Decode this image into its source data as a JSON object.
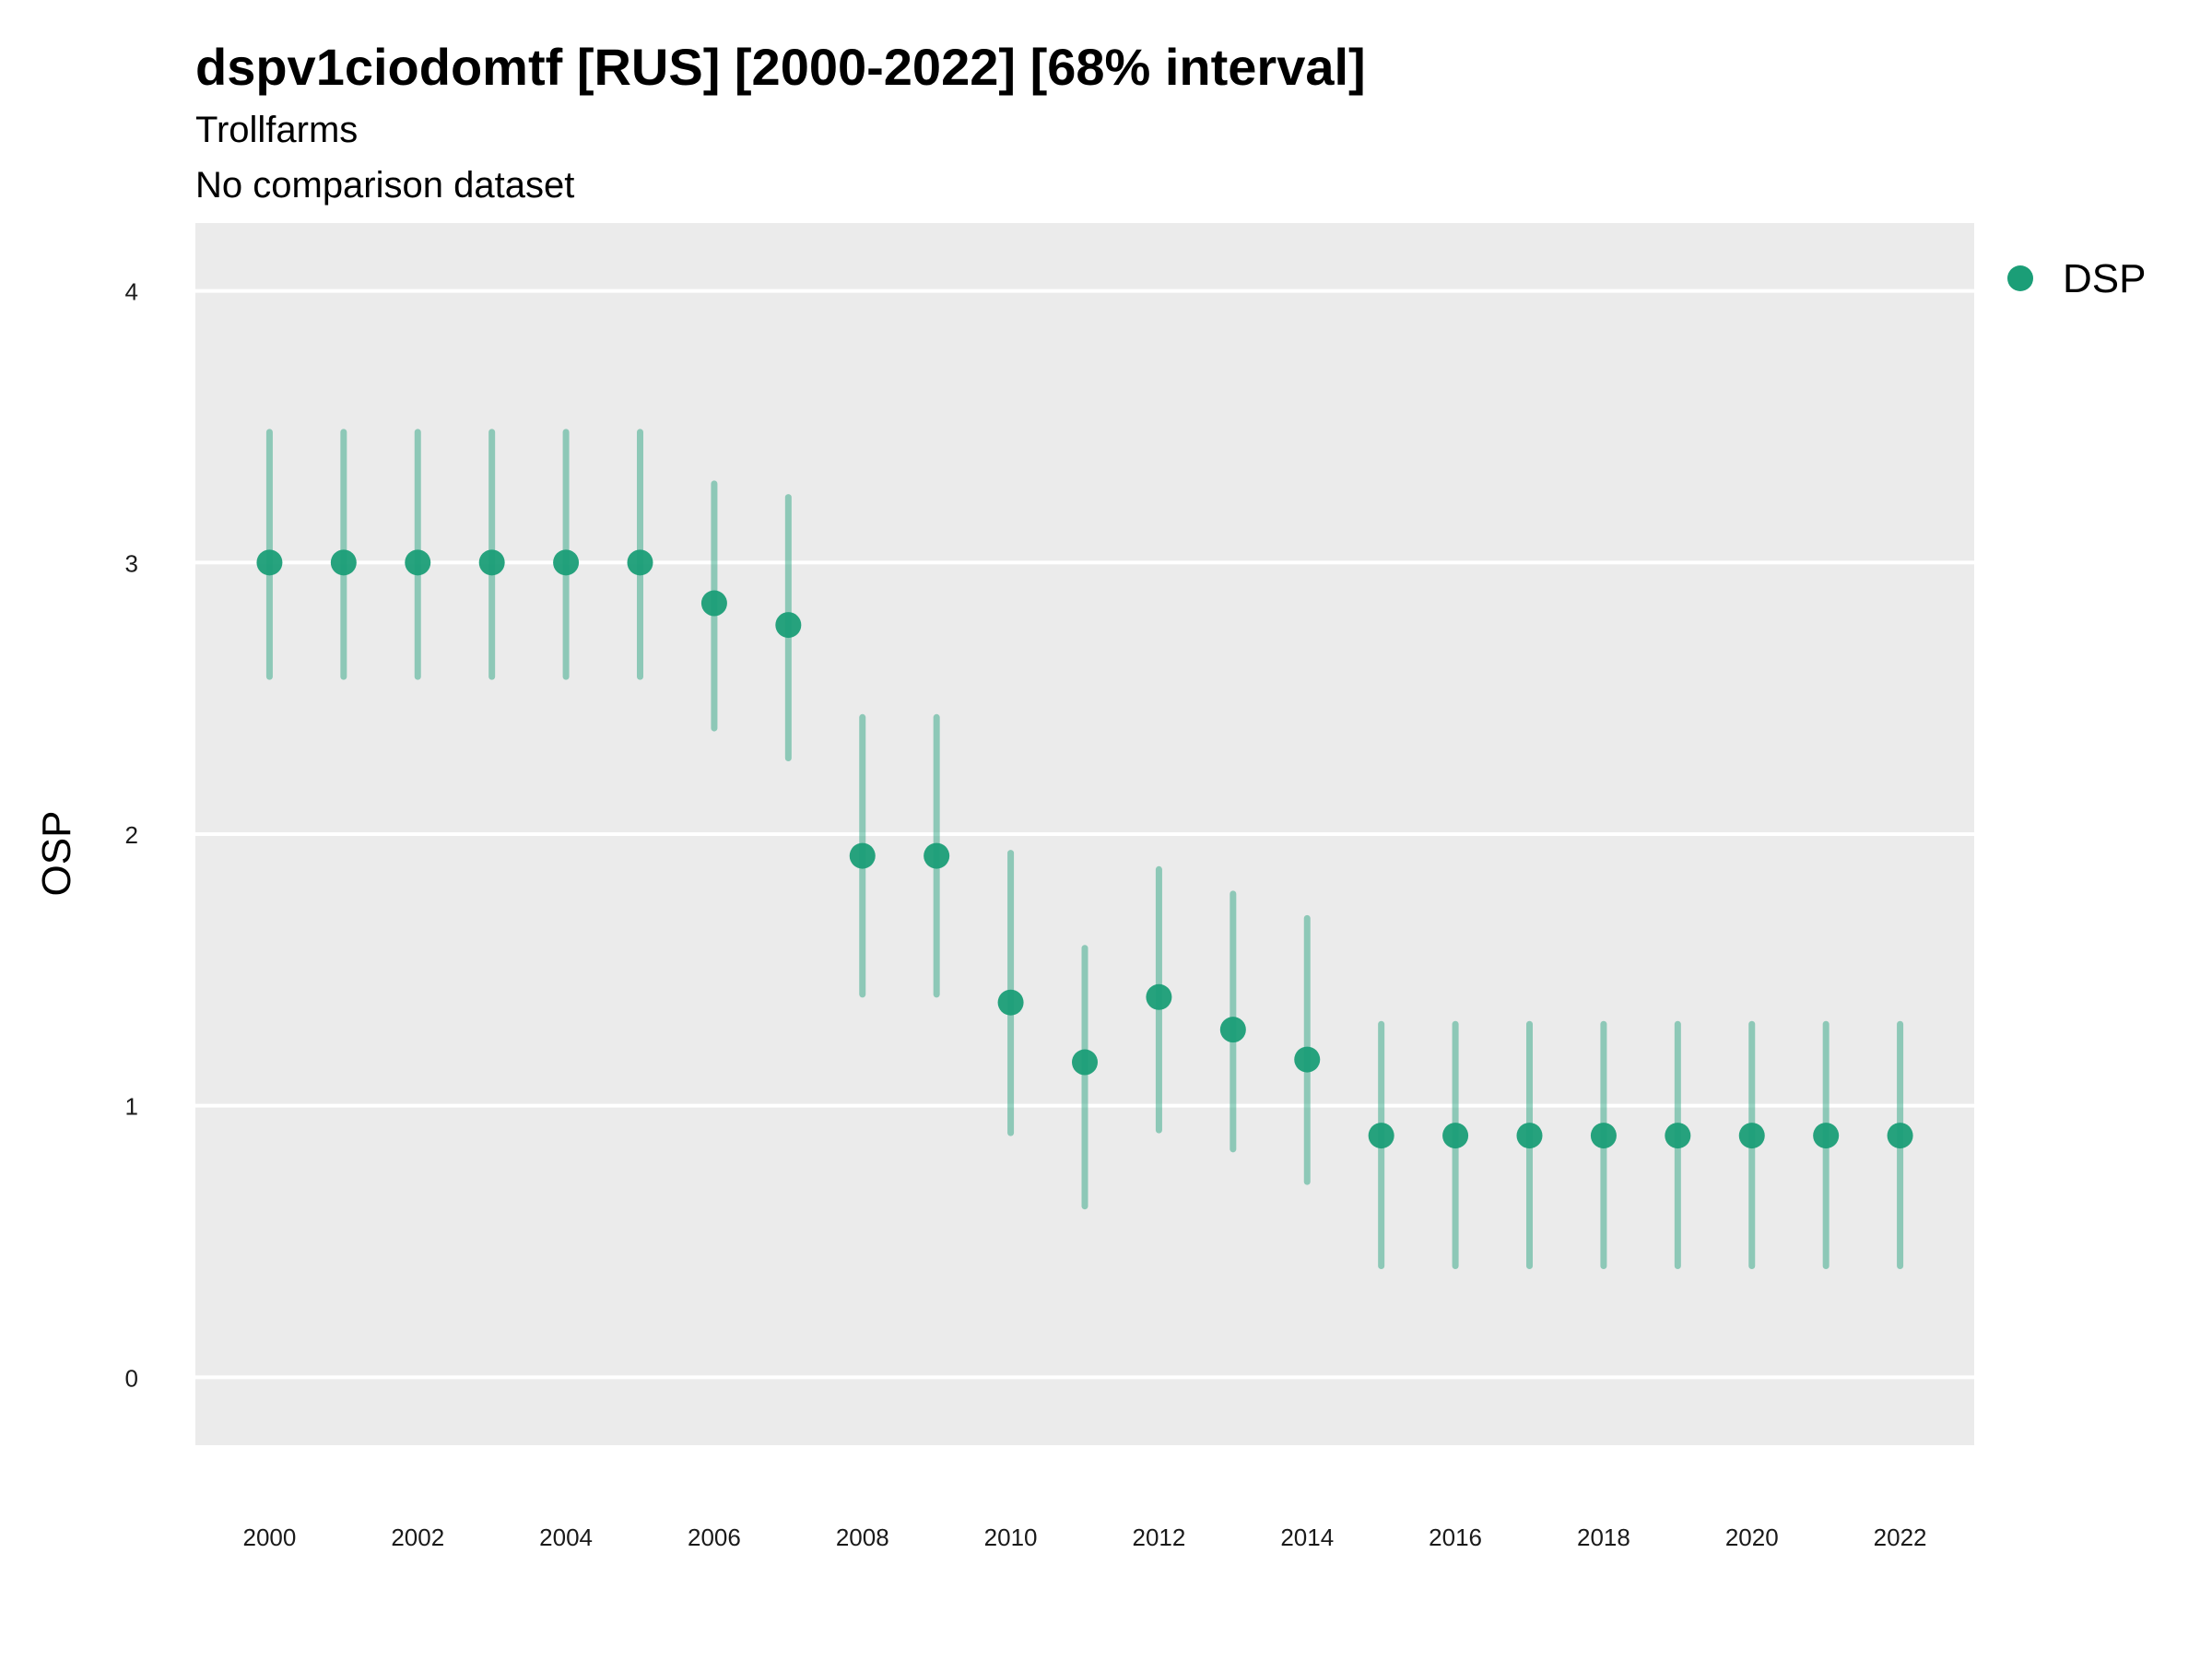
{
  "chart_data": {
    "type": "scatter",
    "title": "dspv1ciodomtf [RUS] [2000-2022] [68% interval]",
    "subtitle_line1": "Trollfarms",
    "subtitle_line2": "No comparison dataset",
    "xlabel": "",
    "ylabel": "OSP",
    "xlim": [
      1999,
      2023
    ],
    "ylim": [
      -0.25,
      4.25
    ],
    "x_ticks": [
      "2000",
      "2002",
      "2004",
      "2006",
      "2008",
      "2010",
      "2012",
      "2014",
      "2016",
      "2018",
      "2020",
      "2022"
    ],
    "y_ticks": [
      "0",
      "1",
      "2",
      "3",
      "4"
    ],
    "grid": true,
    "legend_position": "top-right",
    "series": [
      {
        "name": "DSP",
        "color": "#1b9e77",
        "x": [
          2000,
          2001,
          2002,
          2003,
          2004,
          2005,
          2006,
          2007,
          2008,
          2009,
          2010,
          2011,
          2012,
          2013,
          2014,
          2015,
          2016,
          2017,
          2018,
          2019,
          2020,
          2021,
          2022
        ],
        "y": [
          3.0,
          3.0,
          3.0,
          3.0,
          3.0,
          3.0,
          2.85,
          2.77,
          1.92,
          1.92,
          1.38,
          1.16,
          1.4,
          1.28,
          1.17,
          0.89,
          0.89,
          0.89,
          0.89,
          0.89,
          0.89,
          0.89,
          0.89
        ],
        "lower": [
          2.58,
          2.58,
          2.58,
          2.58,
          2.58,
          2.58,
          2.39,
          2.28,
          1.41,
          1.41,
          0.9,
          0.63,
          0.91,
          0.84,
          0.72,
          0.41,
          0.41,
          0.41,
          0.41,
          0.41,
          0.41,
          0.41,
          0.41
        ],
        "upper": [
          3.48,
          3.48,
          3.48,
          3.48,
          3.48,
          3.48,
          3.29,
          3.24,
          2.43,
          2.43,
          1.93,
          1.58,
          1.87,
          1.78,
          1.69,
          1.3,
          1.3,
          1.3,
          1.3,
          1.3,
          1.3,
          1.3,
          1.3
        ]
      }
    ]
  }
}
